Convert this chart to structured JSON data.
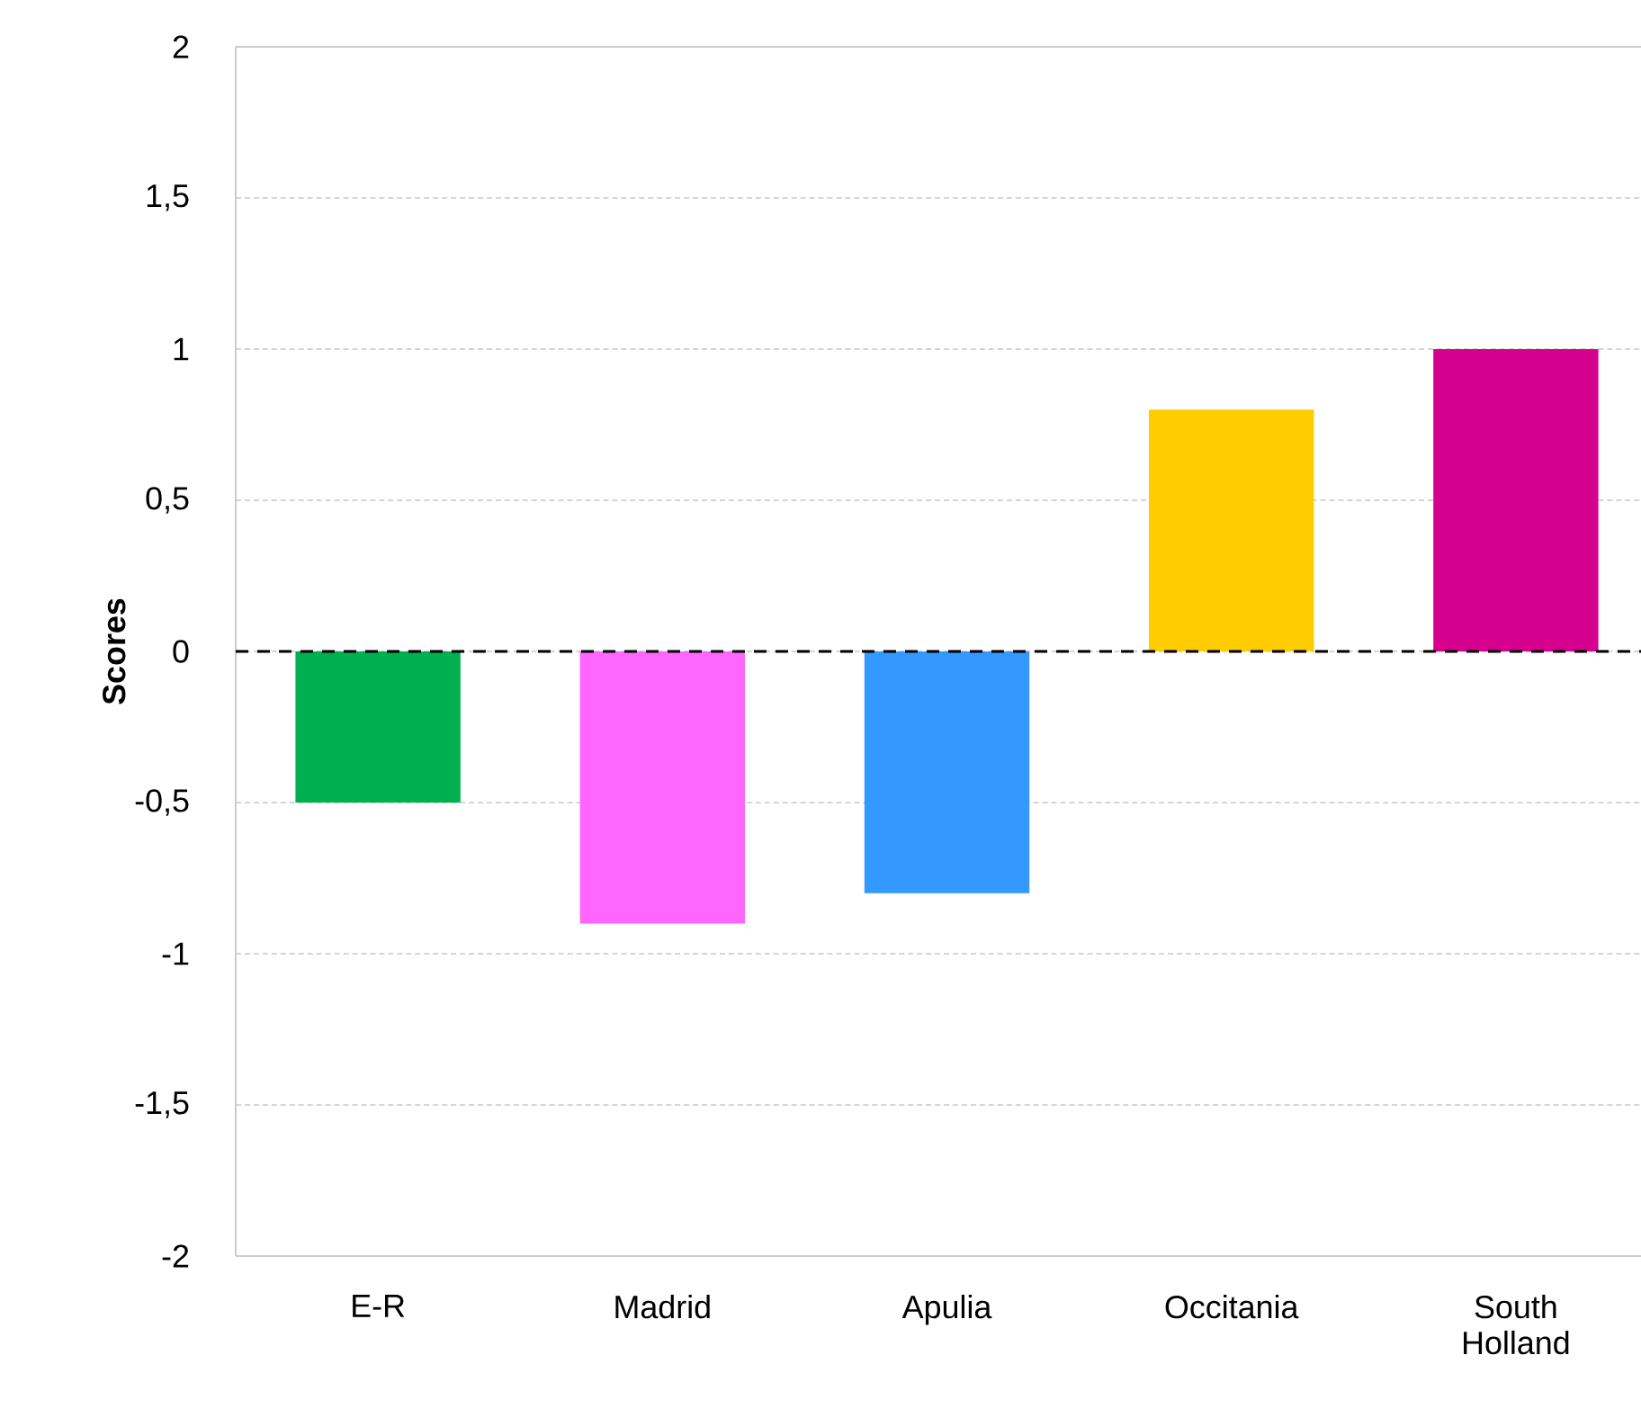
{
  "chart_data": {
    "type": "bar",
    "categories": [
      "E-R",
      "Madrid",
      "Apulia",
      "Occitania",
      "South Holland"
    ],
    "values": [
      -0.5,
      -0.9,
      -0.8,
      0.8,
      1.0
    ],
    "colors": [
      "#00b050",
      "#ff66ff",
      "#3399ff",
      "#ffcc00",
      "#d6008f"
    ],
    "ylabel": "Scores",
    "ylim": [
      -2,
      2
    ],
    "yticks": [
      {
        "value": -2,
        "label": "-2"
      },
      {
        "value": -1.5,
        "label": "-1,5"
      },
      {
        "value": -1,
        "label": "-1"
      },
      {
        "value": -0.5,
        "label": "-0,5"
      },
      {
        "value": 0,
        "label": "0"
      },
      {
        "value": 0.5,
        "label": "0,5"
      },
      {
        "value": 1,
        "label": "1"
      },
      {
        "value": 1.5,
        "label": "1,5"
      },
      {
        "value": 2,
        "label": "2"
      }
    ],
    "grid": "y",
    "ref_lines": [
      {
        "axis": "y",
        "value": 0,
        "color": "#000000",
        "line_style": "dashed"
      }
    ]
  }
}
